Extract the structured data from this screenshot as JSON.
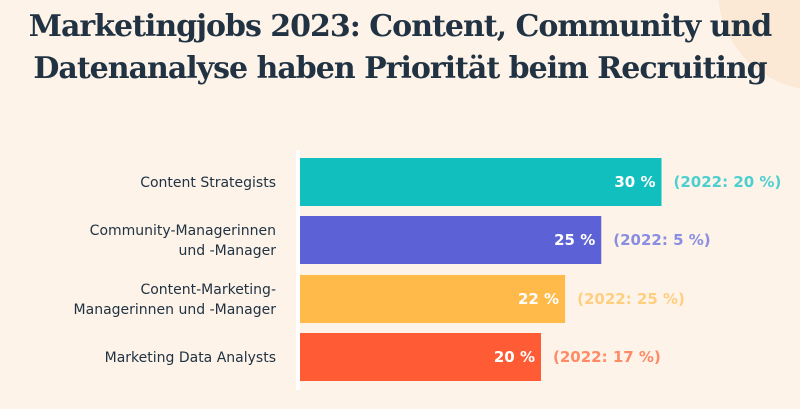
{
  "chart_data": {
    "type": "bar",
    "orientation": "horizontal",
    "title": "Marketingjobs 2023: Content, Community und Datenanalyse haben Priorität beim Recruiting",
    "categories": [
      [
        "Content Strategists"
      ],
      [
        "Community-Managerinnen",
        "und -Manager"
      ],
      [
        "Content-Marketing-",
        "Managerinnen und -Manager"
      ],
      [
        "Marketing Data Analysts"
      ]
    ],
    "values": [
      30,
      25,
      22,
      20
    ],
    "value_labels": [
      "30 %",
      "25 %",
      "22 %",
      "20 %"
    ],
    "previous_labels": [
      "(2022: 20 %)",
      "(2022: 5 %)",
      "(2022: 25 %)",
      "(2022: 17 %)"
    ],
    "previous_values": [
      20,
      5,
      25,
      17
    ],
    "colors": [
      "#12bfbf",
      "#5c62d6",
      "#ffba4a",
      "#ff5c35"
    ],
    "previous_label_colors": [
      "#4ecfcf",
      "#8a8ee0",
      "#ffcf80",
      "#ff8a66"
    ],
    "unit": "%",
    "grid": false,
    "legend": "none"
  },
  "colors": {
    "background": "#fdf3e9",
    "title": "#213343"
  }
}
